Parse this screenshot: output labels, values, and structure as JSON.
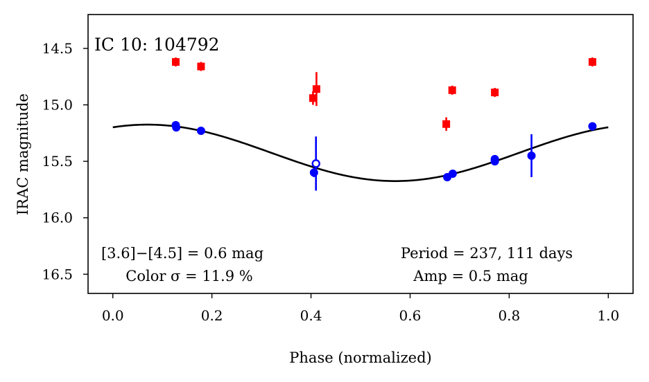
{
  "chart_data": {
    "type": "scatter",
    "title": "IC 10:  104792",
    "xlabel": "Phase (normalized)",
    "ylabel": "IRAC magnitude",
    "xlim": [
      -0.05,
      1.05
    ],
    "ylim": [
      16.67,
      14.2
    ],
    "y_inverted": true,
    "xticks": [
      0.0,
      0.2,
      0.4,
      0.6,
      0.8,
      1.0
    ],
    "xtick_labels": [
      "0.0",
      "0.2",
      "0.4",
      "0.6",
      "0.8",
      "1.0"
    ],
    "yticks": [
      14.5,
      15.0,
      15.5,
      16.0,
      16.5
    ],
    "ytick_labels": [
      "14.5",
      "15.0",
      "15.5",
      "16.0",
      "16.5"
    ],
    "grid": false,
    "series": [
      {
        "name": "[3.6] band",
        "color": "#0000ff",
        "marker": "circle",
        "points": [
          {
            "x": 0.127,
            "y": 15.18,
            "err": 0.03
          },
          {
            "x": 0.128,
            "y": 15.2,
            "err": 0.03
          },
          {
            "x": 0.178,
            "y": 15.23,
            "err": 0.03
          },
          {
            "x": 0.406,
            "y": 15.6,
            "err": 0.04
          },
          {
            "x": 0.675,
            "y": 15.64,
            "err": 0.03
          },
          {
            "x": 0.686,
            "y": 15.61,
            "err": 0.03
          },
          {
            "x": 0.771,
            "y": 15.48,
            "err": 0.03
          },
          {
            "x": 0.771,
            "y": 15.5,
            "err": 0.03
          },
          {
            "x": 0.845,
            "y": 15.45,
            "err": 0.19
          },
          {
            "x": 0.968,
            "y": 15.19,
            "err": 0.03
          }
        ],
        "open_points": [
          {
            "x": 0.41,
            "y": 15.52,
            "err": 0.24
          }
        ]
      },
      {
        "name": "[4.5] band",
        "color": "#ff0000",
        "marker": "square",
        "points": [
          {
            "x": 0.127,
            "y": 14.62,
            "err": 0.04
          },
          {
            "x": 0.178,
            "y": 14.66,
            "err": 0.04
          },
          {
            "x": 0.404,
            "y": 14.94,
            "err": 0.06
          },
          {
            "x": 0.411,
            "y": 14.86,
            "err": 0.15
          },
          {
            "x": 0.673,
            "y": 15.17,
            "err": 0.06
          },
          {
            "x": 0.685,
            "y": 14.87,
            "err": 0.04
          },
          {
            "x": 0.771,
            "y": 14.89,
            "err": 0.04
          },
          {
            "x": 0.968,
            "y": 14.62,
            "err": 0.04
          }
        ]
      }
    ],
    "model_curve": {
      "name": "sinusoidal fit",
      "color": "#000000",
      "mean": 15.425,
      "amplitude": 0.25,
      "phase_of_max_brightness": 0.07,
      "x_range": [
        0.0,
        1.0
      ]
    },
    "annotations": {
      "color_line": "[3.6]−[4.5] = 0.6 mag",
      "color_sigma": "Color σ = 11.9 %",
      "period": "Period = 237, 111 days",
      "amp": "Amp = 0.5 mag"
    }
  }
}
